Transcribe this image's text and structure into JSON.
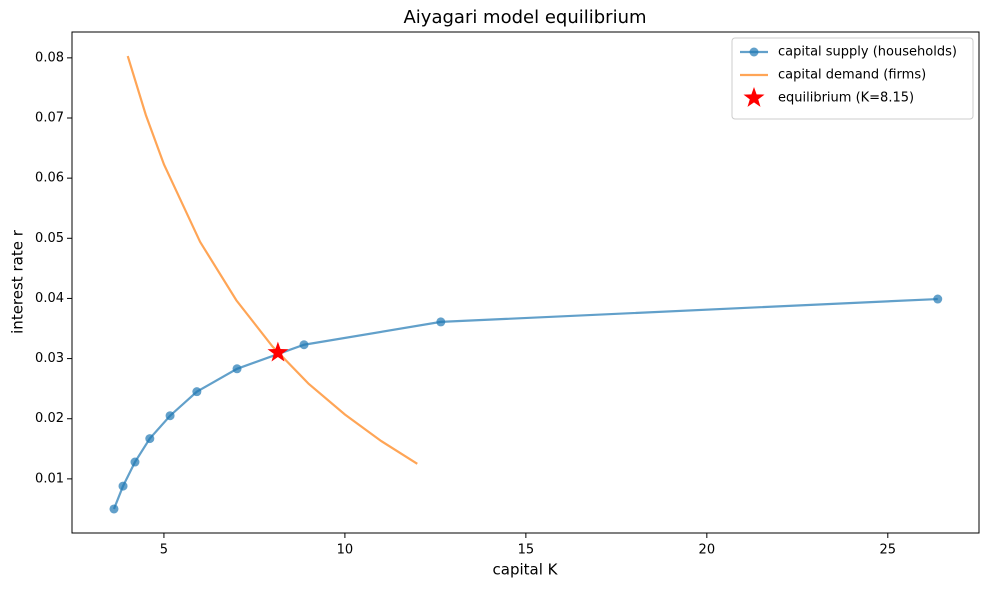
{
  "chart_data": {
    "type": "line",
    "title": "Aiyagari model equilibrium",
    "x_label": "capital K",
    "y_label": "interest rate r",
    "xlim": [
      2.46,
      27.52
    ],
    "ylim": [
      0.001,
      0.0843
    ],
    "xticks": [
      5,
      10,
      15,
      20,
      25
    ],
    "yticks": [
      0.01,
      0.02,
      0.03,
      0.04,
      0.05,
      0.06,
      0.07,
      0.08
    ],
    "legend": "upper right",
    "series": [
      {
        "name": "capital supply (households)",
        "color": "#1f77b4",
        "marker": "circle",
        "x": [
          3.62,
          3.87,
          4.2,
          4.61,
          5.17,
          5.91,
          7.02,
          8.87,
          12.65,
          26.38
        ],
        "values": [
          0.005,
          0.0088,
          0.0128,
          0.0167,
          0.0205,
          0.0245,
          0.0283,
          0.0323,
          0.0361,
          0.0399
        ]
      },
      {
        "name": "capital demand (firms)",
        "color": "#ff7f0e",
        "marker": "none",
        "x": [
          4,
          4.5,
          5,
          6,
          7,
          8,
          9,
          10,
          11,
          12
        ],
        "values": [
          0.0803,
          0.0705,
          0.0623,
          0.0494,
          0.0397,
          0.032,
          0.0258,
          0.0207,
          0.0163,
          0.0125
        ]
      },
      {
        "name": "equilibrium (K=8.15)",
        "color": "#ff0000",
        "marker": "star",
        "x": [
          8.15
        ],
        "values": [
          0.031
        ]
      }
    ]
  }
}
